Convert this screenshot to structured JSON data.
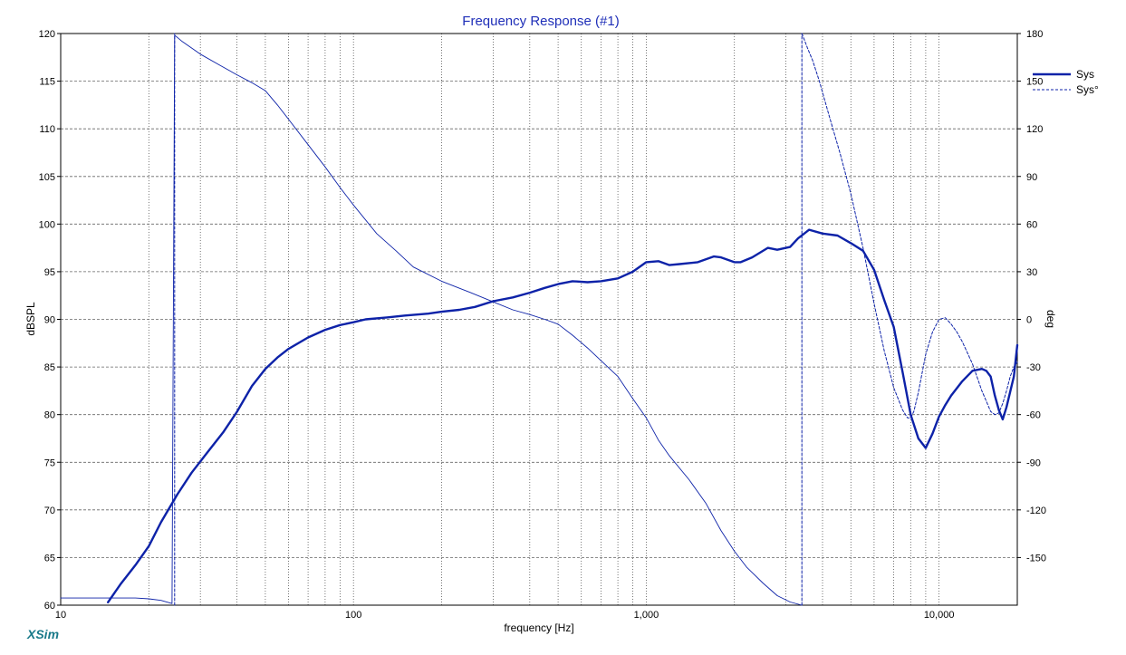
{
  "chart_data": {
    "type": "line",
    "title": "Frequency Response (#1)",
    "xlabel": "frequency [Hz]",
    "ylabel": "dBSPL",
    "y2label": "deg",
    "x_scale": "log",
    "xlim": [
      10,
      18500
    ],
    "ylim": [
      60,
      120
    ],
    "y2lim": [
      -180,
      180
    ],
    "grid": true,
    "legend_position": "top-right",
    "x_ticks": [
      {
        "value": 10,
        "label": "10"
      },
      {
        "value": 100,
        "label": "100"
      },
      {
        "value": 1000,
        "label": "1,000"
      },
      {
        "value": 10000,
        "label": "10,000"
      }
    ],
    "y_ticks": [
      {
        "value": 60,
        "label": "60"
      },
      {
        "value": 65,
        "label": "65"
      },
      {
        "value": 70,
        "label": "70"
      },
      {
        "value": 75,
        "label": "75"
      },
      {
        "value": 80,
        "label": "80"
      },
      {
        "value": 85,
        "label": "85"
      },
      {
        "value": 90,
        "label": "90"
      },
      {
        "value": 95,
        "label": "95"
      },
      {
        "value": 100,
        "label": "100"
      },
      {
        "value": 105,
        "label": "105"
      },
      {
        "value": 110,
        "label": "110"
      },
      {
        "value": 115,
        "label": "115"
      },
      {
        "value": 120,
        "label": "120"
      }
    ],
    "y2_ticks": [
      {
        "value": 180,
        "label": "180"
      },
      {
        "value": 150,
        "label": "150"
      },
      {
        "value": 120,
        "label": "120"
      },
      {
        "value": 90,
        "label": "90"
      },
      {
        "value": 60,
        "label": "60"
      },
      {
        "value": 30,
        "label": "30"
      },
      {
        "value": 0,
        "label": "0"
      },
      {
        "value": -30,
        "label": "-30"
      },
      {
        "value": -60,
        "label": "-60"
      },
      {
        "value": -90,
        "label": "-90"
      },
      {
        "value": -120,
        "label": "-120"
      },
      {
        "value": -150,
        "label": "-150"
      }
    ],
    "series": [
      {
        "name": "Sys",
        "axis": "left",
        "style": "solid-thick",
        "color": "#0d22a8",
        "x": [
          14.5,
          16,
          18,
          20,
          22,
          25,
          28,
          32,
          36,
          40,
          45,
          50,
          55,
          60,
          70,
          80,
          90,
          100,
          110,
          130,
          150,
          180,
          200,
          230,
          260,
          300,
          350,
          400,
          450,
          500,
          560,
          630,
          700,
          800,
          900,
          1000,
          1100,
          1200,
          1300,
          1500,
          1700,
          1800,
          2000,
          2100,
          2300,
          2600,
          2800,
          3100,
          3300,
          3600,
          4000,
          4500,
          5000,
          5500,
          6000,
          6500,
          7000,
          7500,
          8000,
          8500,
          9000,
          9500,
          10000,
          10500,
          11000,
          12000,
          13000,
          14000,
          14500,
          15000,
          15500,
          16000,
          16500,
          17000,
          18000,
          18500
        ],
        "y": [
          60.3,
          62.2,
          64.2,
          66.2,
          68.7,
          71.6,
          73.9,
          76.2,
          78.2,
          80.3,
          83.0,
          84.8,
          86.0,
          86.9,
          88.1,
          88.9,
          89.4,
          89.7,
          90.0,
          90.2,
          90.4,
          90.6,
          90.8,
          91.0,
          91.3,
          91.9,
          92.3,
          92.8,
          93.3,
          93.7,
          94.0,
          93.9,
          94.0,
          94.3,
          95.0,
          96.0,
          96.1,
          95.7,
          95.8,
          96.0,
          96.6,
          96.5,
          96.0,
          96.0,
          96.5,
          97.5,
          97.3,
          97.6,
          98.5,
          99.4,
          99.0,
          98.8,
          98.0,
          97.2,
          95.2,
          92.0,
          89.2,
          84.5,
          80.0,
          77.5,
          76.5,
          78.0,
          79.8,
          81.0,
          82.0,
          83.5,
          84.6,
          84.8,
          84.6,
          84.0,
          82.0,
          80.5,
          79.5,
          80.8,
          84.0,
          87.3
        ]
      },
      {
        "name": "Sys°",
        "axis": "right",
        "style": "solid-thin",
        "color": "#0d22a8",
        "x": [
          10,
          12,
          15,
          18,
          20,
          22,
          24,
          24.5,
          26,
          30,
          35,
          40,
          45,
          50,
          55,
          60,
          70,
          80,
          90,
          100,
          120,
          140,
          160,
          200,
          250,
          300,
          350,
          400,
          450,
          500,
          560,
          630,
          700,
          800,
          900,
          1000,
          1100,
          1200,
          1400,
          1600,
          1800,
          2000,
          2200,
          2500,
          2800,
          3100,
          3400
        ],
        "y": [
          -175.5,
          -175.5,
          -175.5,
          -175.5,
          -176,
          -177,
          -179,
          179,
          175,
          167,
          160,
          154,
          149,
          144,
          135,
          126,
          110,
          96,
          83,
          72,
          54,
          43,
          33,
          24,
          17,
          11,
          6,
          3,
          0,
          -3,
          -10,
          -18,
          -26,
          -36,
          -50,
          -62,
          -76,
          -86,
          -101,
          -116,
          -133,
          -146,
          -156,
          -166,
          -174,
          -178,
          -180
        ]
      },
      {
        "name": "Sys°",
        "axis": "right",
        "style": "dashed",
        "color": "#0d22a8",
        "x": [
          3400,
          3450,
          3550,
          3700,
          3900,
          4200,
          4600,
          5000,
          5500,
          6000,
          6500,
          7000,
          7500,
          7800,
          8000,
          8200,
          8500,
          9000,
          9500,
          10000,
          10500,
          11000,
          11500,
          12000,
          13000,
          14000,
          15000,
          15500,
          16000,
          16500,
          17000,
          17500,
          18000,
          18500
        ],
        "y": [
          180,
          177,
          171,
          163,
          150,
          129,
          104,
          79,
          45,
          10,
          -20,
          -43,
          -57,
          -62,
          -62,
          -58,
          -46,
          -22,
          -8,
          0,
          1,
          -3,
          -8,
          -14,
          -28,
          -45,
          -58,
          -60,
          -59,
          -53,
          -45,
          -36,
          -30,
          -27
        ]
      },
      {
        "name": "",
        "axis": "right",
        "style": "dashed",
        "color": "#0d22a8",
        "x": [
          24.5,
          24.5
        ],
        "y": [
          -180,
          180
        ]
      },
      {
        "name": "",
        "axis": "right",
        "style": "dashed",
        "color": "#0d22a8",
        "x": [
          3400,
          3400
        ],
        "y": [
          -180,
          180
        ]
      }
    ],
    "legend": [
      {
        "label": "Sys",
        "style": "solid-thick"
      },
      {
        "label": "Sys°",
        "style": "dashed"
      }
    ]
  },
  "brand": "XSim"
}
